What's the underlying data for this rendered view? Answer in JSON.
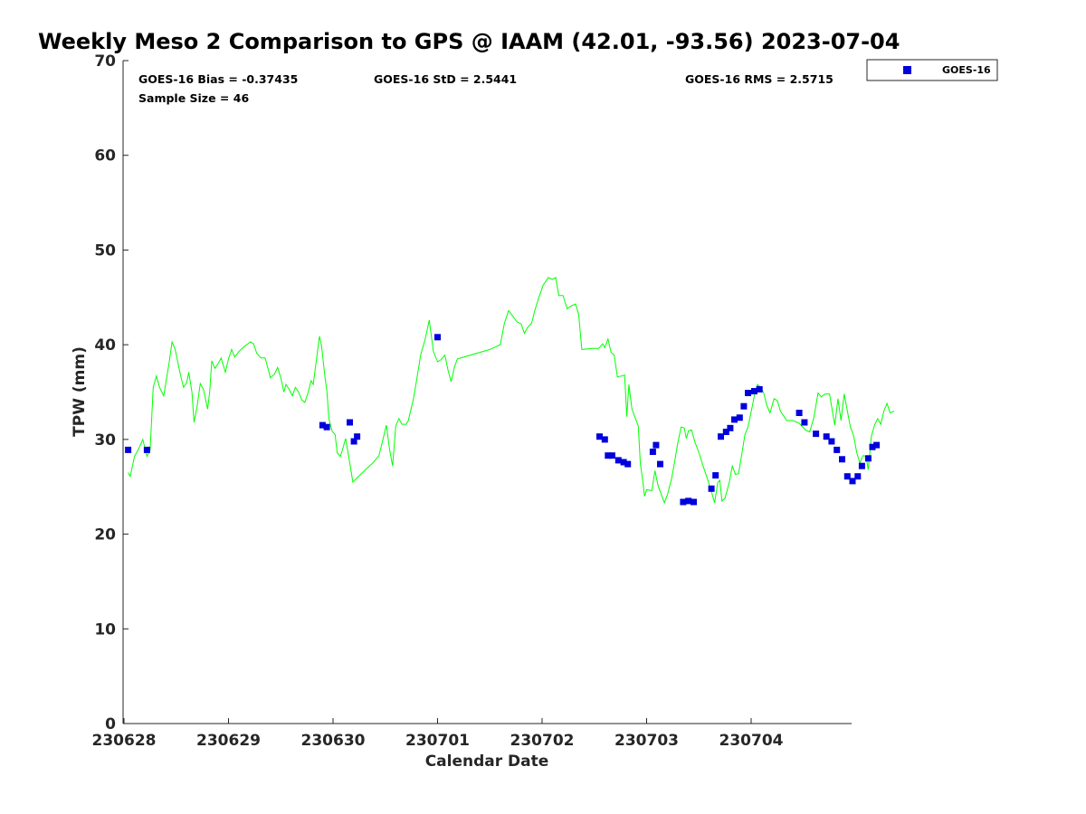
{
  "chart_data": {
    "type": "scatter",
    "title": "Weekly Meso 2 Comparison to GPS @ IAAM (42.01, -93.56) 2023-07-04",
    "xlabel": "Calendar Date",
    "ylabel": "TPW (mm)",
    "x_date_origin": "2023-06-28",
    "xlim": [
      -0.1,
      6.95
    ],
    "ylim": [
      0,
      70
    ],
    "grid": false,
    "legend_position": "top-right (outside plot)",
    "x_ticks": [
      {
        "value": 0,
        "label": "230628"
      },
      {
        "value": 1,
        "label": "230629"
      },
      {
        "value": 2,
        "label": "230630"
      },
      {
        "value": 3,
        "label": "230701"
      },
      {
        "value": 4,
        "label": "230702"
      },
      {
        "value": 5,
        "label": "230703"
      },
      {
        "value": 6,
        "label": "230704"
      }
    ],
    "y_ticks": [
      0,
      10,
      20,
      30,
      40,
      50,
      60,
      70
    ],
    "stats": {
      "bias": "GOES-16 Bias = -0.37435",
      "std": "GOES-16 StD = 2.5441",
      "rms": "GOES-16 RMS = 2.5715",
      "sample": "Sample Size = 46"
    },
    "series": [
      {
        "name": "GPS",
        "type": "line",
        "color": "#00ff00",
        "points": [
          [
            0.04,
            26.5
          ],
          [
            0.06,
            26.1
          ],
          [
            0.1,
            28.2
          ],
          [
            0.14,
            29.0
          ],
          [
            0.18,
            30.0
          ],
          [
            0.22,
            28.2
          ],
          [
            0.25,
            28.9
          ],
          [
            0.28,
            35.5
          ],
          [
            0.31,
            36.7
          ],
          [
            0.34,
            35.5
          ],
          [
            0.38,
            34.6
          ],
          [
            0.43,
            38.0
          ],
          [
            0.46,
            40.3
          ],
          [
            0.49,
            39.5
          ],
          [
            0.54,
            36.8
          ],
          [
            0.57,
            35.5
          ],
          [
            0.6,
            36.0
          ],
          [
            0.62,
            37.1
          ],
          [
            0.65,
            35.0
          ],
          [
            0.67,
            31.8
          ],
          [
            0.7,
            33.5
          ],
          [
            0.73,
            35.9
          ],
          [
            0.76,
            35.3
          ],
          [
            0.8,
            33.2
          ],
          [
            0.82,
            35.0
          ],
          [
            0.84,
            38.3
          ],
          [
            0.87,
            37.5
          ],
          [
            0.9,
            38.0
          ],
          [
            0.93,
            38.6
          ],
          [
            0.97,
            37.1
          ],
          [
            1.0,
            38.5
          ],
          [
            1.03,
            39.5
          ],
          [
            1.06,
            38.7
          ],
          [
            1.1,
            39.3
          ],
          [
            1.15,
            39.8
          ],
          [
            1.21,
            40.3
          ],
          [
            1.24,
            40.1
          ],
          [
            1.27,
            39.1
          ],
          [
            1.31,
            38.6
          ],
          [
            1.35,
            38.6
          ],
          [
            1.38,
            37.4
          ],
          [
            1.4,
            36.5
          ],
          [
            1.44,
            36.9
          ],
          [
            1.47,
            37.6
          ],
          [
            1.5,
            36.5
          ],
          [
            1.53,
            35.0
          ],
          [
            1.55,
            35.8
          ],
          [
            1.58,
            35.3
          ],
          [
            1.61,
            34.6
          ],
          [
            1.64,
            35.5
          ],
          [
            1.67,
            35.0
          ],
          [
            1.7,
            34.2
          ],
          [
            1.73,
            33.9
          ],
          [
            1.76,
            34.9
          ],
          [
            1.79,
            36.2
          ],
          [
            1.81,
            35.8
          ],
          [
            1.84,
            38.3
          ],
          [
            1.87,
            40.9
          ],
          [
            1.89,
            39.9
          ],
          [
            1.92,
            36.8
          ],
          [
            1.94,
            35.2
          ],
          [
            1.96,
            32.2
          ],
          [
            1.99,
            30.9
          ],
          [
            2.02,
            30.5
          ],
          [
            2.04,
            28.6
          ],
          [
            2.07,
            28.2
          ],
          [
            2.09,
            28.9
          ],
          [
            2.12,
            30.1
          ],
          [
            2.15,
            28.2
          ],
          [
            2.19,
            25.5
          ],
          [
            2.31,
            26.8
          ],
          [
            2.38,
            27.5
          ],
          [
            2.44,
            28.3
          ],
          [
            2.48,
            30.1
          ],
          [
            2.51,
            31.5
          ],
          [
            2.54,
            29.0
          ],
          [
            2.57,
            27.2
          ],
          [
            2.6,
            31.4
          ],
          [
            2.63,
            32.2
          ],
          [
            2.66,
            31.6
          ],
          [
            2.7,
            31.6
          ],
          [
            2.72,
            32.0
          ],
          [
            2.77,
            34.3
          ],
          [
            2.8,
            36.3
          ],
          [
            2.84,
            39.0
          ],
          [
            2.88,
            40.5
          ],
          [
            2.92,
            42.6
          ],
          [
            2.96,
            39.3
          ],
          [
            3.0,
            38.2
          ],
          [
            3.03,
            38.4
          ],
          [
            3.07,
            38.9
          ],
          [
            3.1,
            37.3
          ],
          [
            3.13,
            36.1
          ],
          [
            3.16,
            37.6
          ],
          [
            3.19,
            38.5
          ],
          [
            3.5,
            39.5
          ],
          [
            3.6,
            40.0
          ],
          [
            3.64,
            42.3
          ],
          [
            3.68,
            43.6
          ],
          [
            3.72,
            43.0
          ],
          [
            3.76,
            42.4
          ],
          [
            3.8,
            42.2
          ],
          [
            3.83,
            41.2
          ],
          [
            3.86,
            41.8
          ],
          [
            3.9,
            42.3
          ],
          [
            3.93,
            43.6
          ],
          [
            3.97,
            45.0
          ],
          [
            4.01,
            46.3
          ],
          [
            4.06,
            47.1
          ],
          [
            4.1,
            46.9
          ],
          [
            4.13,
            47.1
          ],
          [
            4.16,
            45.2
          ],
          [
            4.2,
            45.2
          ],
          [
            4.24,
            43.8
          ],
          [
            4.28,
            44.1
          ],
          [
            4.32,
            44.3
          ],
          [
            4.35,
            43.2
          ],
          [
            4.38,
            39.5
          ],
          [
            4.48,
            39.6
          ],
          [
            4.54,
            39.6
          ],
          [
            4.58,
            40.1
          ],
          [
            4.6,
            39.7
          ],
          [
            4.63,
            40.6
          ],
          [
            4.66,
            39.2
          ],
          [
            4.69,
            38.9
          ],
          [
            4.72,
            36.6
          ],
          [
            4.76,
            36.7
          ],
          [
            4.79,
            36.8
          ],
          [
            4.81,
            32.4
          ],
          [
            4.83,
            35.8
          ],
          [
            4.86,
            33.2
          ],
          [
            4.89,
            32.3
          ],
          [
            4.92,
            31.4
          ],
          [
            4.94,
            27.4
          ],
          [
            4.96,
            25.9
          ],
          [
            4.98,
            24.0
          ],
          [
            5.0,
            24.7
          ],
          [
            5.05,
            24.6
          ],
          [
            5.08,
            26.7
          ],
          [
            5.11,
            25.1
          ],
          [
            5.14,
            24.2
          ],
          [
            5.17,
            23.3
          ],
          [
            5.2,
            24.2
          ],
          [
            5.24,
            25.9
          ],
          [
            5.27,
            27.8
          ],
          [
            5.3,
            29.7
          ],
          [
            5.33,
            31.3
          ],
          [
            5.36,
            31.2
          ],
          [
            5.38,
            30.1
          ],
          [
            5.4,
            30.9
          ],
          [
            5.43,
            31.0
          ],
          [
            5.46,
            29.8
          ],
          [
            5.5,
            28.6
          ],
          [
            5.54,
            27.2
          ],
          [
            5.58,
            25.9
          ],
          [
            5.62,
            24.5
          ],
          [
            5.65,
            23.3
          ],
          [
            5.68,
            25.4
          ],
          [
            5.7,
            25.7
          ],
          [
            5.72,
            23.5
          ],
          [
            5.75,
            23.8
          ],
          [
            5.79,
            25.4
          ],
          [
            5.82,
            27.2
          ],
          [
            5.85,
            26.3
          ],
          [
            5.88,
            26.4
          ],
          [
            5.91,
            28.4
          ],
          [
            5.94,
            30.5
          ],
          [
            5.97,
            31.3
          ],
          [
            6.0,
            32.9
          ],
          [
            6.03,
            34.6
          ],
          [
            6.06,
            35.8
          ],
          [
            6.09,
            35.5
          ],
          [
            6.12,
            34.9
          ],
          [
            6.15,
            33.6
          ],
          [
            6.18,
            32.8
          ],
          [
            6.22,
            34.3
          ],
          [
            6.25,
            34.1
          ],
          [
            6.28,
            33.0
          ],
          [
            6.34,
            32.0
          ],
          [
            6.4,
            32.0
          ],
          [
            6.46,
            31.7
          ],
          [
            6.52,
            31.0
          ],
          [
            6.56,
            30.8
          ],
          [
            6.6,
            32.3
          ],
          [
            6.64,
            34.9
          ],
          [
            6.67,
            34.5
          ],
          [
            6.71,
            34.8
          ],
          [
            6.75,
            34.8
          ],
          [
            6.78,
            32.8
          ],
          [
            6.8,
            31.5
          ],
          [
            6.83,
            34.3
          ],
          [
            6.86,
            32.0
          ],
          [
            6.89,
            34.8
          ],
          [
            6.92,
            33.0
          ],
          [
            6.95,
            31.3
          ],
          [
            6.98,
            30.4
          ],
          [
            7.01,
            28.6
          ],
          [
            7.04,
            27.5
          ],
          [
            7.07,
            28.3
          ],
          [
            7.1,
            28.2
          ],
          [
            7.12,
            26.8
          ],
          [
            7.15,
            30.3
          ],
          [
            7.18,
            31.5
          ],
          [
            7.21,
            32.2
          ],
          [
            7.24,
            31.6
          ],
          [
            7.27,
            33.0
          ],
          [
            7.3,
            33.8
          ],
          [
            7.33,
            32.8
          ],
          [
            7.37,
            33.0
          ]
        ]
      },
      {
        "name": "GOES-16",
        "type": "scatter",
        "color": "#0000dd",
        "marker": "square",
        "points": [
          [
            0.04,
            28.9
          ],
          [
            0.22,
            28.9
          ],
          [
            1.9,
            31.5
          ],
          [
            1.94,
            31.3
          ],
          [
            2.16,
            31.8
          ],
          [
            2.2,
            29.8
          ],
          [
            2.23,
            30.3
          ],
          [
            3.0,
            40.8
          ],
          [
            4.55,
            30.3
          ],
          [
            4.6,
            30.0
          ],
          [
            4.63,
            28.3
          ],
          [
            4.67,
            28.3
          ],
          [
            4.73,
            27.8
          ],
          [
            4.78,
            27.6
          ],
          [
            4.82,
            27.4
          ],
          [
            5.06,
            28.7
          ],
          [
            5.09,
            29.4
          ],
          [
            5.13,
            27.4
          ],
          [
            5.35,
            23.4
          ],
          [
            5.4,
            23.5
          ],
          [
            5.45,
            23.4
          ],
          [
            5.62,
            24.8
          ],
          [
            5.66,
            26.2
          ],
          [
            5.71,
            30.3
          ],
          [
            5.76,
            30.8
          ],
          [
            5.8,
            31.2
          ],
          [
            5.84,
            32.1
          ],
          [
            5.89,
            32.3
          ],
          [
            5.93,
            33.5
          ],
          [
            5.97,
            34.9
          ],
          [
            6.03,
            35.1
          ],
          [
            6.08,
            35.3
          ],
          [
            6.46,
            32.8
          ],
          [
            6.51,
            31.8
          ],
          [
            6.62,
            30.6
          ],
          [
            6.72,
            30.3
          ],
          [
            6.77,
            29.8
          ],
          [
            6.82,
            28.9
          ],
          [
            6.87,
            27.9
          ],
          [
            6.92,
            26.1
          ],
          [
            6.97,
            25.6
          ],
          [
            7.02,
            26.1
          ],
          [
            7.06,
            27.2
          ],
          [
            7.12,
            28.0
          ],
          [
            7.16,
            29.2
          ],
          [
            7.2,
            29.4
          ]
        ]
      }
    ],
    "legend": [
      {
        "label": "GOES-16",
        "color": "#0000dd",
        "marker": "square"
      }
    ]
  }
}
